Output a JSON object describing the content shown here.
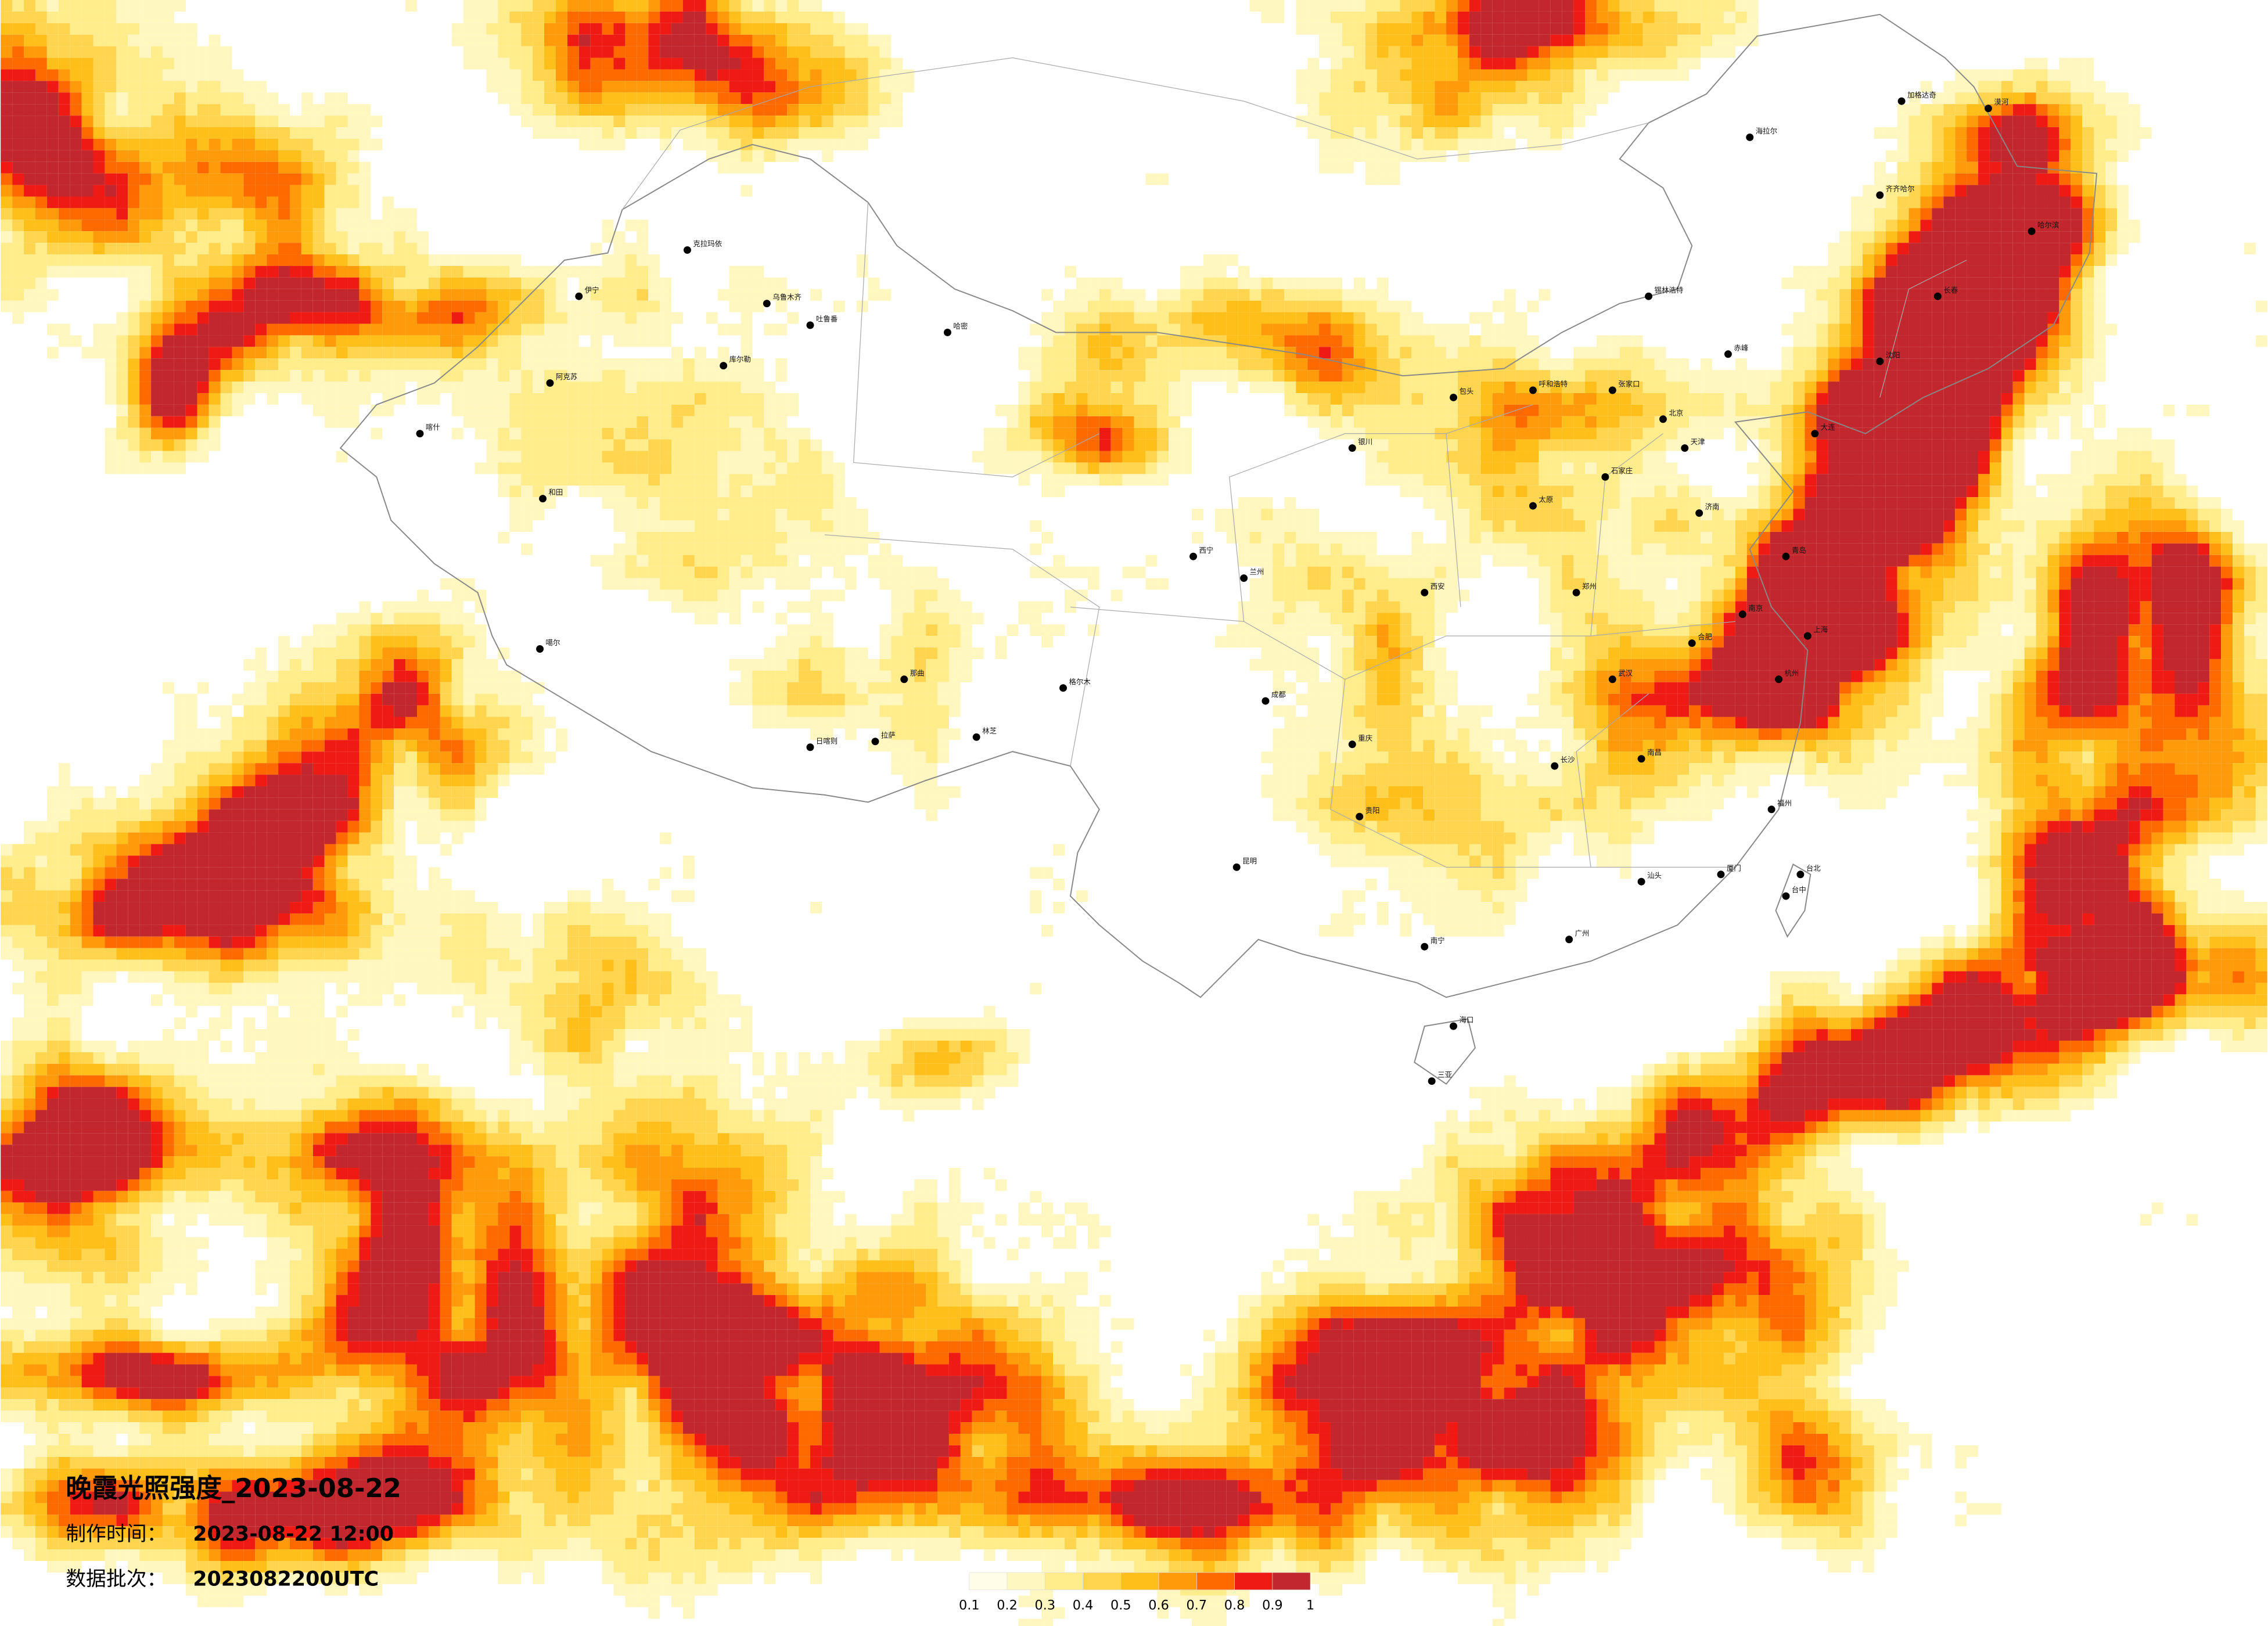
{
  "title": "晚霞光照强度_2023-08-22",
  "production_time": {
    "label": "制作时间：",
    "value": "2023-08-22 12:00"
  },
  "data_batch": {
    "label": "数据批次：",
    "value": "2023082200UTC"
  },
  "legend": {
    "colors": [
      "#fffce8",
      "#fff6c0",
      "#ffec8a",
      "#ffd54f",
      "#ffbf1a",
      "#ff9a0a",
      "#ff6a00",
      "#f01a14",
      "#c1272d"
    ],
    "ticks": [
      0.1,
      0.2,
      0.3,
      0.4,
      0.5,
      0.6,
      0.7,
      0.8,
      0.9,
      1
    ]
  },
  "cities": [
    "乌鲁木齐",
    "克拉玛依",
    "伊宁",
    "阿克苏",
    "喀什",
    "和田",
    "库尔勒",
    "哈密",
    "吐鲁番",
    "拉萨",
    "日喀则",
    "林芝",
    "那曲",
    "噶尔",
    "格尔木",
    "西宁",
    "兰州",
    "银川",
    "呼和浩特",
    "北京",
    "天津",
    "石家庄",
    "太原",
    "济南",
    "郑州",
    "西安",
    "成都",
    "重庆",
    "武汉",
    "长沙",
    "南昌",
    "合肥",
    "南京",
    "上海",
    "杭州",
    "福州",
    "广州",
    "南宁",
    "贵阳",
    "昆明",
    "海口",
    "台北",
    "台中",
    "哈尔滨",
    "长春",
    "沈阳",
    "大连",
    "漠河",
    "海拉尔",
    "加格达奇",
    "齐齐哈尔",
    "锡林浩特",
    "张家口",
    "包头",
    "赤峰",
    "青岛",
    "厦门",
    "汕头",
    "三亚"
  ]
}
